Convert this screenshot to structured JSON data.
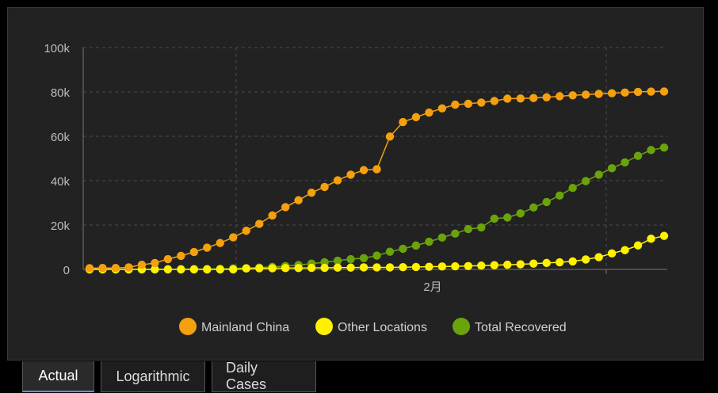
{
  "chart_data": {
    "type": "line",
    "x_tick_label": "2月",
    "y_ticks": [
      {
        "value": 0,
        "label": "0"
      },
      {
        "value": 20000,
        "label": "20k"
      },
      {
        "value": 40000,
        "label": "40k"
      },
      {
        "value": 60000,
        "label": "60k"
      },
      {
        "value": 80000,
        "label": "80k"
      },
      {
        "value": 100000,
        "label": "100k"
      }
    ],
    "ylim": [
      0,
      100000
    ],
    "series": [
      {
        "name": "Mainland China",
        "color": "#f5a00f",
        "values": [
          555,
          654,
          639,
          916,
          2074,
          2889,
          4633,
          6097,
          7835,
          9786,
          11891,
          14446,
          17409,
          20530,
          24320,
          28060,
          31159,
          34557,
          37170,
          40150,
          42718,
          44734,
          45170,
          59866,
          66391,
          68619,
          70707,
          72573,
          74243,
          74674,
          75213,
          75918,
          76962,
          77048,
          77230,
          77568,
          78032,
          78460,
          78755,
          79112,
          79410,
          79703,
          80022,
          80171,
          80207
        ]
      },
      {
        "name": "Other Locations",
        "color": "#fff100",
        "values": [
          0,
          0,
          0,
          0,
          0,
          0,
          0,
          0,
          0,
          0,
          0,
          0,
          400,
          500,
          500,
          600,
          600,
          700,
          700,
          800,
          800,
          900,
          900,
          900,
          1000,
          1100,
          1200,
          1300,
          1400,
          1500,
          1700,
          1900,
          2100,
          2300,
          2600,
          2900,
          3200,
          3600,
          4500,
          5500,
          7200,
          8700,
          10800,
          13800,
          15100
        ]
      },
      {
        "name": "Total Recovered",
        "color": "#6aa30b",
        "values": [
          28,
          30,
          36,
          39,
          49,
          58,
          101,
          120,
          135,
          214,
          275,
          463,
          614,
          843,
          1115,
          1477,
          1999,
          2596,
          3219,
          3918,
          4636,
          5082,
          6217,
          7977,
          9298,
          10755,
          12462,
          14352,
          16121,
          18177,
          18890,
          22886,
          23394,
          25227,
          27905,
          30384,
          33277,
          36711,
          39782,
          42716,
          45602,
          48228,
          51170,
          53796,
          54900
        ]
      }
    ]
  },
  "legend": [
    {
      "label": "Mainland China",
      "color": "#f5a00f"
    },
    {
      "label": "Other Locations",
      "color": "#fff100"
    },
    {
      "label": "Total Recovered",
      "color": "#6aa30b"
    }
  ],
  "tabs": [
    {
      "label": "Actual",
      "active": true
    },
    {
      "label": "Logarithmic",
      "active": false
    },
    {
      "label": "Daily Cases",
      "active": false
    }
  ]
}
